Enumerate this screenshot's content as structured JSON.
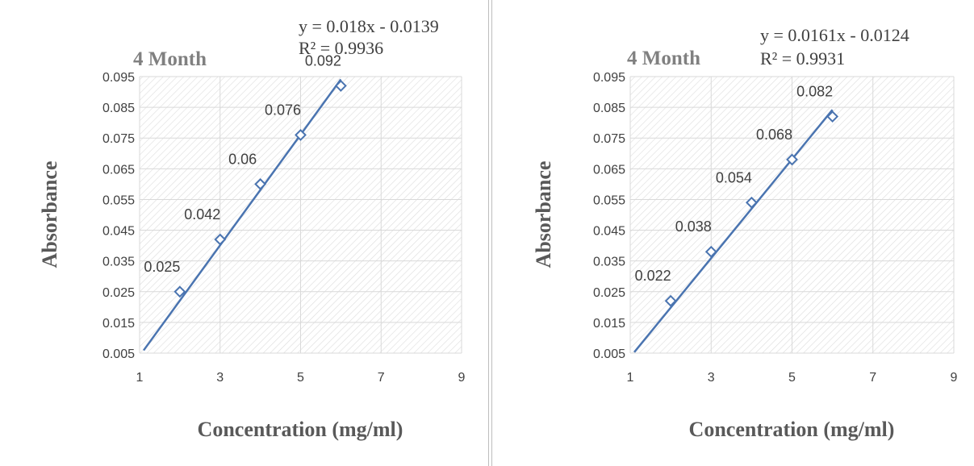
{
  "chart_data": [
    {
      "type": "scatter",
      "title": "4 Month",
      "xlabel": "Concentration (mg/ml)",
      "ylabel": "Absorbance",
      "xlim": [
        1,
        9
      ],
      "ylim": [
        0.005,
        0.095
      ],
      "x_ticks": [
        "1",
        "3",
        "5",
        "7",
        "9"
      ],
      "y_ticks": [
        "0.005",
        "0.015",
        "0.025",
        "0.035",
        "0.045",
        "0.055",
        "0.065",
        "0.075",
        "0.085",
        "0.095"
      ],
      "grid": true,
      "x": [
        2,
        3,
        4,
        5,
        6
      ],
      "y": [
        0.025,
        0.042,
        0.06,
        0.076,
        0.092
      ],
      "data_labels": [
        "0.025",
        "0.042",
        "0.06",
        "0.076",
        "0.092"
      ],
      "trendline": {
        "slope": 0.018,
        "intercept": -0.0139,
        "x_range": [
          1.1,
          6
        ]
      },
      "equation": "y = 0.018x - 0.0139",
      "r_squared": "R² = 0.9936",
      "colors": {
        "series": "#4a74b0",
        "grid": "#d9d9d9",
        "hatch": "#dcdcdc",
        "title": "#808080"
      }
    },
    {
      "type": "scatter",
      "title": "4 Month",
      "xlabel": "Concentration (mg/ml)",
      "ylabel": "Absorbance",
      "xlim": [
        1,
        9
      ],
      "ylim": [
        0.005,
        0.095
      ],
      "x_ticks": [
        "1",
        "3",
        "5",
        "7",
        "9"
      ],
      "y_ticks": [
        "0.005",
        "0.015",
        "0.025",
        "0.035",
        "0.045",
        "0.055",
        "0.065",
        "0.075",
        "0.085",
        "0.095"
      ],
      "grid": true,
      "x": [
        2,
        3,
        4,
        5,
        6
      ],
      "y": [
        0.022,
        0.038,
        0.054,
        0.068,
        0.082
      ],
      "data_labels": [
        "0.022",
        "0.038",
        "0.054",
        "0.068",
        "0.082"
      ],
      "trendline": {
        "slope": 0.0161,
        "intercept": -0.0124,
        "x_range": [
          1.1,
          6
        ]
      },
      "equation": "y = 0.0161x - 0.0124",
      "r_squared": "R² = 0.9931",
      "colors": {
        "series": "#4a74b0",
        "grid": "#d9d9d9",
        "hatch": "#dcdcdc",
        "title": "#808080"
      }
    }
  ]
}
